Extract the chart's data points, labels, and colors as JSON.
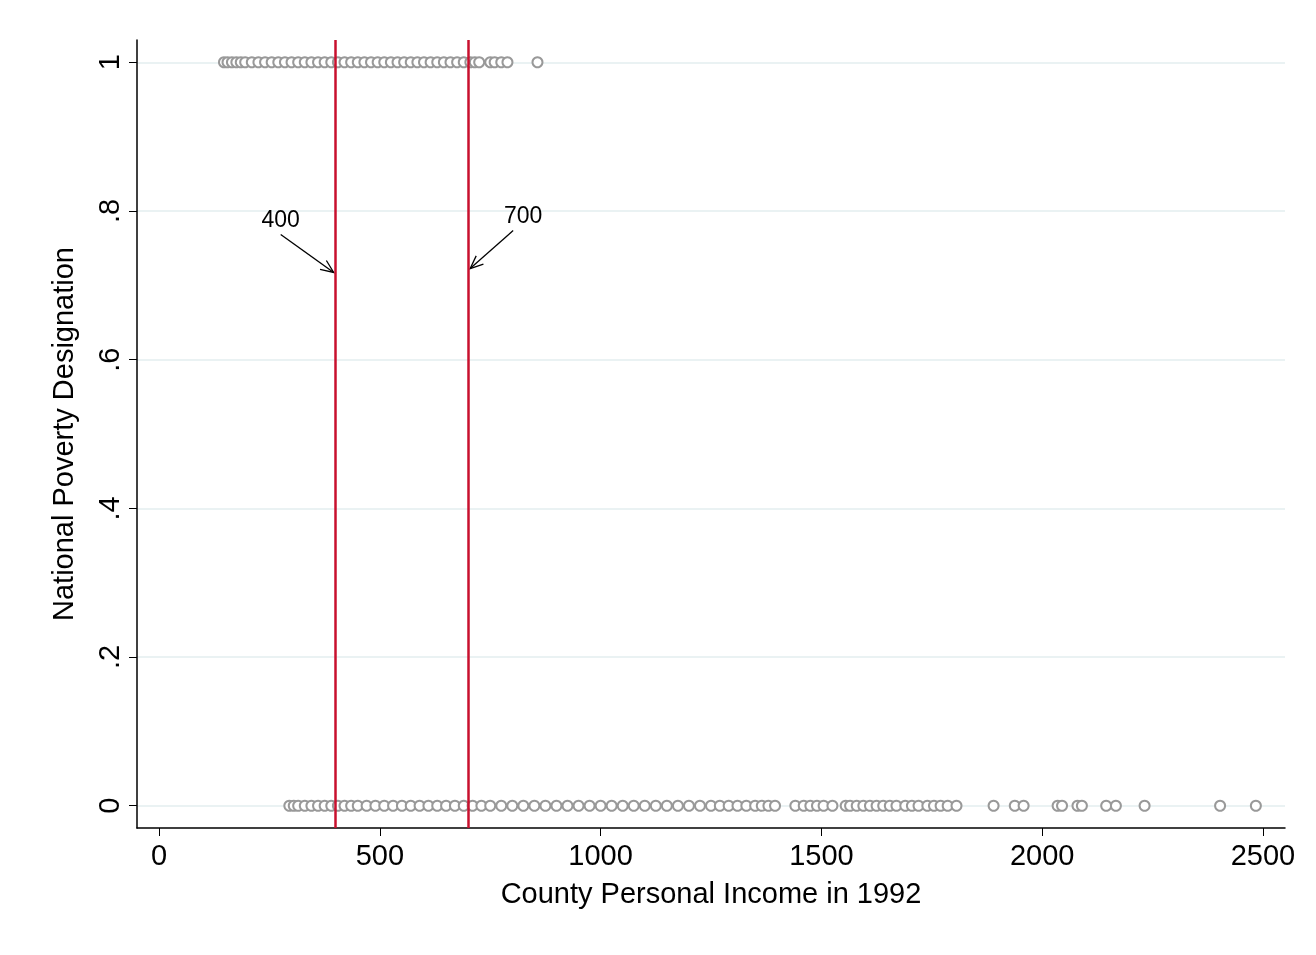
{
  "chart_data": {
    "type": "scatter",
    "xlabel": "County Personal Income in 1992",
    "ylabel": "National Poverty Designation",
    "xlim": [
      -50,
      2550
    ],
    "xticks": [
      0,
      500,
      1000,
      1500,
      2000,
      2500
    ],
    "ylim": [
      -0.03,
      1.03
    ],
    "yticks": [
      0,
      {
        "value": 0.2,
        "label": ".2"
      },
      {
        "value": 0.4,
        "label": ".4"
      },
      {
        "value": 0.6,
        "label": ".6"
      },
      {
        "value": 0.8,
        "label": ".8"
      },
      1
    ],
    "grid": "y",
    "marker": "circle",
    "ref_lines": [
      {
        "axis": "x",
        "value": 400,
        "label": "400",
        "color": "#c8102e"
      },
      {
        "axis": "x",
        "value": 700,
        "label": "700",
        "color": "#c8102e"
      }
    ],
    "series": [
      {
        "color": "#999999",
        "x": [
          147,
          155,
          165,
          175,
          185,
          195,
          210,
          225,
          240,
          255,
          270,
          285,
          300,
          315,
          330,
          345,
          360,
          375,
          390,
          405,
          420,
          435,
          450,
          465,
          480,
          495,
          510,
          525,
          540,
          555,
          570,
          585,
          600,
          615,
          630,
          645,
          660,
          675,
          690,
          705,
          715,
          725,
          750,
          760,
          775,
          789,
          857,
          295,
          305,
          315,
          330,
          345,
          360,
          375,
          390,
          405,
          420,
          435,
          450,
          470,
          490,
          510,
          530,
          550,
          570,
          590,
          610,
          630,
          650,
          670,
          690,
          710,
          730,
          750,
          775,
          800,
          825,
          850,
          875,
          900,
          925,
          950,
          975,
          1000,
          1025,
          1050,
          1075,
          1100,
          1125,
          1150,
          1175,
          1200,
          1225,
          1250,
          1270,
          1290,
          1310,
          1330,
          1350,
          1365,
          1380,
          1395,
          1441,
          1460,
          1475,
          1490,
          1505,
          1525,
          1555,
          1565,
          1580,
          1595,
          1610,
          1625,
          1640,
          1655,
          1670,
          1690,
          1705,
          1720,
          1740,
          1755,
          1770,
          1786,
          1806,
          1890,
          1938,
          1958,
          2035,
          2045,
          2080,
          2090,
          2145,
          2167,
          2232,
          2403,
          2484
        ],
        "values": [
          1,
          1,
          1,
          1,
          1,
          1,
          1,
          1,
          1,
          1,
          1,
          1,
          1,
          1,
          1,
          1,
          1,
          1,
          1,
          1,
          1,
          1,
          1,
          1,
          1,
          1,
          1,
          1,
          1,
          1,
          1,
          1,
          1,
          1,
          1,
          1,
          1,
          1,
          1,
          1,
          1,
          1,
          1,
          1,
          1,
          1,
          1,
          0,
          0,
          0,
          0,
          0,
          0,
          0,
          0,
          0,
          0,
          0,
          0,
          0,
          0,
          0,
          0,
          0,
          0,
          0,
          0,
          0,
          0,
          0,
          0,
          0,
          0,
          0,
          0,
          0,
          0,
          0,
          0,
          0,
          0,
          0,
          0,
          0,
          0,
          0,
          0,
          0,
          0,
          0,
          0,
          0,
          0,
          0,
          0,
          0,
          0,
          0,
          0,
          0,
          0,
          0,
          0,
          0,
          0,
          0,
          0,
          0,
          0,
          0,
          0,
          0,
          0,
          0,
          0,
          0,
          0,
          0,
          0,
          0,
          0,
          0,
          0,
          0,
          0,
          0,
          0,
          0,
          0,
          0,
          0,
          0,
          0,
          0,
          0,
          0,
          0
        ]
      }
    ]
  }
}
